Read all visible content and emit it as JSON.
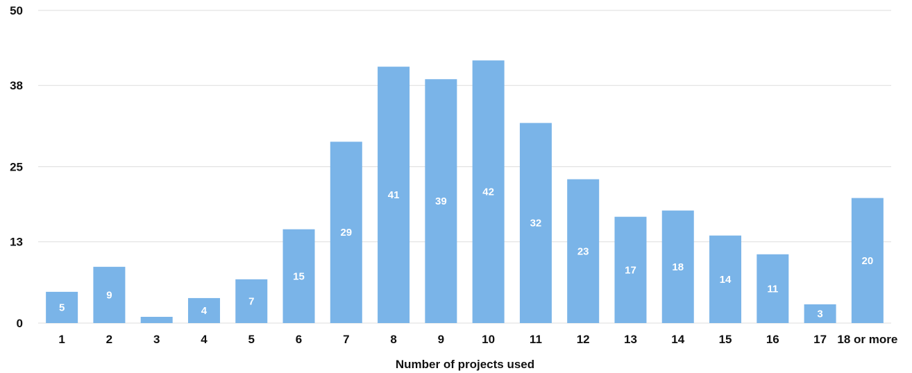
{
  "chart_data": {
    "type": "bar",
    "title": "",
    "xlabel": "Number of projects used",
    "ylabel": "",
    "categories": [
      "1",
      "2",
      "3",
      "4",
      "5",
      "6",
      "7",
      "8",
      "9",
      "10",
      "11",
      "12",
      "13",
      "14",
      "15",
      "16",
      "17",
      "18 or more"
    ],
    "values": [
      5,
      9,
      1,
      4,
      7,
      15,
      29,
      41,
      39,
      42,
      32,
      23,
      17,
      18,
      14,
      11,
      3,
      20
    ],
    "data_labels": [
      "5",
      "9",
      "",
      "4",
      "7",
      "15",
      "29",
      "41",
      "39",
      "42",
      "32",
      "23",
      "17",
      "18",
      "14",
      "11",
      "3",
      "20"
    ],
    "yticks": [
      0,
      13,
      25,
      38,
      50
    ],
    "ylim": [
      0,
      50
    ],
    "grid": true,
    "legend": "none",
    "bar_color": "#7ab4e8"
  }
}
